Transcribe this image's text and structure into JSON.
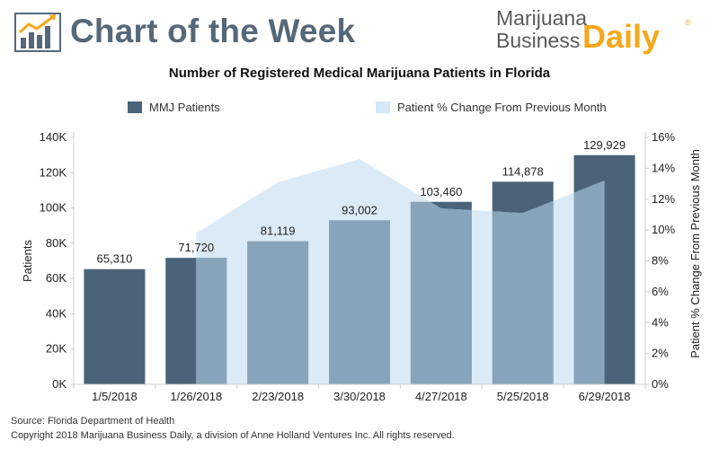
{
  "header": {
    "title": "Chart of the Week",
    "icon": "bar-chart-trend-icon",
    "brand_line1": "Marijuana",
    "brand_line2": "Business",
    "brand_daily": "Daily",
    "brand_reg": "®"
  },
  "colors": {
    "bar_dark": "#4a6378",
    "bar_light": "#87a4ba",
    "area": "#d4e8f6",
    "header_text": "#566878",
    "brand_orange": "#f5a81c"
  },
  "chart_data": {
    "type": "bar",
    "title": "Number of Registered Medical Marijuana Patients in Florida",
    "categories": [
      "1/5/2018",
      "1/26/2018",
      "2/23/2018",
      "3/30/2018",
      "4/27/2018",
      "5/25/2018",
      "6/29/2018"
    ],
    "series": [
      {
        "name": "MMJ Patients",
        "type": "bar",
        "axis": "left",
        "values": [
          65310,
          71720,
          81119,
          93002,
          103460,
          114878,
          129929
        ]
      },
      {
        "name": "Patient % Change From Previous Month",
        "type": "area",
        "axis": "right",
        "values": [
          null,
          9.8,
          13.1,
          14.6,
          11.4,
          11.1,
          13.2
        ]
      }
    ],
    "data_labels": [
      "65,310",
      "71,720",
      "81,119",
      "93,002",
      "103,460",
      "114,878",
      "129,929"
    ],
    "ylabel": "Patients",
    "ylabel_right": "Patient % Change From Previous Month",
    "ylim": [
      0,
      140000
    ],
    "yticks": [
      0,
      20000,
      40000,
      60000,
      80000,
      100000,
      120000,
      140000
    ],
    "ytick_labels": [
      "0K",
      "20K",
      "40K",
      "60K",
      "80K",
      "100K",
      "120K",
      "140K"
    ],
    "ylim_right": [
      0,
      16
    ],
    "yticks_right": [
      0,
      2,
      4,
      6,
      8,
      10,
      12,
      14,
      16
    ],
    "ytick_labels_right": [
      "0%",
      "2%",
      "4%",
      "6%",
      "8%",
      "10%",
      "12%",
      "14%",
      "16%"
    ],
    "legend_position": "top",
    "grid": false
  },
  "footer": {
    "source": "Source: Florida Department of Health",
    "copyright": "Copyright 2018 Marijuana Business Daily, a division of Anne Holland Ventures Inc. All rights reserved."
  }
}
